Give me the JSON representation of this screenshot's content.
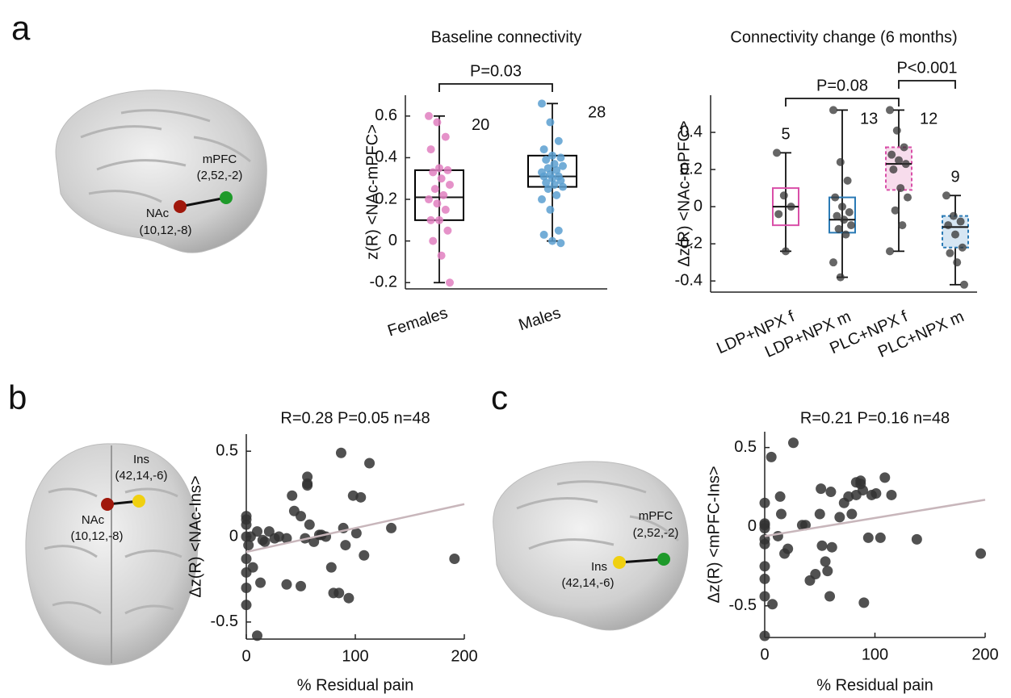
{
  "panel_labels": [
    "a",
    "b",
    "c"
  ],
  "brains": [
    {
      "labels": [
        "mPFC",
        "(2,52,-2)",
        "NAc",
        "(10,12,-8)"
      ]
    },
    {
      "labels": [
        "Ins",
        "(42,14,-6)",
        "NAc",
        "(10,12,-8)"
      ]
    },
    {
      "labels": [
        "mPFC",
        "(2,52,-2)",
        "Ins",
        "(42,14,-6)"
      ]
    }
  ],
  "chart_data": [
    {
      "type": "box",
      "title": "Baseline connectivity",
      "ylabel": "z(R) <NAc-mPFC>",
      "categories": [
        "Females",
        "Males"
      ],
      "ylim": [
        -0.23,
        0.7
      ],
      "yticks": [
        -0.2,
        0,
        0.2,
        0.4,
        0.6
      ],
      "boxes": [
        {
          "min": -0.2,
          "q1": 0.1,
          "median": 0.21,
          "q3": 0.34,
          "max": 0.6,
          "n": 20,
          "color": "#e07fbf",
          "edge": "#000000",
          "fill": "none",
          "dashed": false,
          "points": [
            0.6,
            0.57,
            0.5,
            0.44,
            0.35,
            0.34,
            0.33,
            0.3,
            0.27,
            0.25,
            0.22,
            0.2,
            0.18,
            0.15,
            0.1,
            0.1,
            0.05,
            0.0,
            -0.07,
            -0.2
          ]
        },
        {
          "min": 0,
          "q1": 0.26,
          "median": 0.31,
          "q3": 0.41,
          "max": 0.66,
          "n": 28,
          "color": "#5a9fd0",
          "edge": "#000000",
          "fill": "none",
          "dashed": false,
          "points": [
            0.66,
            0.57,
            0.48,
            0.44,
            0.41,
            0.4,
            0.39,
            0.37,
            0.36,
            0.35,
            0.34,
            0.33,
            0.32,
            0.31,
            0.31,
            0.3,
            0.29,
            0.28,
            0.27,
            0.26,
            0.25,
            0.22,
            0.2,
            0.15,
            0.05,
            0.03,
            0.0,
            -0.01
          ]
        }
      ],
      "brackets": [
        {
          "between": [
            "Females",
            "Males"
          ],
          "label": "P=0.03"
        }
      ]
    },
    {
      "type": "box",
      "title": "Connectivity change (6 months)",
      "ylabel": "Δz(R) <NAc-mPFC>",
      "categories": [
        "LDP+NPX f",
        "LDP+NPX m",
        "PLC+NPX f",
        "PLC+NPX m"
      ],
      "ylim": [
        -0.46,
        0.6
      ],
      "yticks": [
        -0.4,
        -0.2,
        0,
        0.2,
        0.4
      ],
      "boxes": [
        {
          "min": -0.24,
          "q1": -0.1,
          "median": 0,
          "q3": 0.1,
          "max": 0.29,
          "n": 5,
          "color": "#333333",
          "edge": "#d94fa8",
          "fill": "none",
          "dashed": false,
          "points": [
            0.29,
            0.06,
            0,
            -0.04,
            -0.24
          ]
        },
        {
          "min": -0.38,
          "q1": -0.14,
          "median": -0.07,
          "q3": 0.05,
          "max": 0.52,
          "n": 13,
          "color": "#333333",
          "edge": "#2a7ab5",
          "fill": "none",
          "dashed": false,
          "points": [
            0.52,
            0.24,
            0.14,
            0.05,
            0,
            -0.03,
            -0.05,
            -0.07,
            -0.1,
            -0.12,
            -0.15,
            -0.3,
            -0.38
          ]
        },
        {
          "min": -0.24,
          "q1": 0.09,
          "median": 0.23,
          "q3": 0.32,
          "max": 0.52,
          "n": 12,
          "color": "#333333",
          "edge": "#d94fa8",
          "fill": "#f7dcec",
          "dashed": true,
          "points": [
            0.52,
            0.41,
            0.32,
            0.28,
            0.25,
            0.23,
            0.2,
            0.1,
            0.05,
            -0.02,
            -0.1,
            -0.24
          ]
        },
        {
          "min": -0.42,
          "q1": -0.22,
          "median": -0.11,
          "q3": -0.05,
          "max": 0.06,
          "n": 9,
          "color": "#333333",
          "edge": "#2a7ab5",
          "fill": "#d6e6f3",
          "dashed": true,
          "points": [
            0.06,
            -0.05,
            -0.08,
            -0.1,
            -0.15,
            -0.22,
            -0.25,
            -0.3,
            -0.42
          ]
        }
      ],
      "brackets": [
        {
          "between": [
            "LDP+NPX f",
            "PLC+NPX f"
          ],
          "label": "P=0.08"
        },
        {
          "between": [
            "PLC+NPX f",
            "PLC+NPX m"
          ],
          "label": "P<0.001"
        }
      ]
    },
    {
      "type": "scatter",
      "title": "R=0.28 P=0.05 n=48",
      "xlabel": "% Residual pain",
      "ylabel": "Δz(R) <NAc-Ins>",
      "color": "#333333",
      "xlim": [
        0,
        200
      ],
      "xticks": [
        0,
        100,
        200
      ],
      "ylim": [
        -0.6,
        0.6
      ],
      "yticks": [
        -0.5,
        0,
        0.5
      ],
      "x": [
        0,
        0,
        0,
        0,
        0,
        0,
        0,
        0,
        2,
        4,
        6,
        10,
        10,
        13,
        15,
        17,
        21,
        26,
        37,
        37,
        42,
        44,
        50,
        50,
        54,
        56,
        56,
        56,
        58,
        67,
        69,
        73,
        78,
        80,
        85,
        87,
        89,
        91,
        94,
        98,
        101,
        105,
        108,
        113,
        133,
        191,
        30,
        62
      ],
      "y": [
        0.12,
        0.1,
        0.07,
        0,
        -0.13,
        -0.21,
        -0.3,
        -0.4,
        -0.05,
        0,
        -0.18,
        -0.58,
        0.03,
        -0.27,
        -0.02,
        -0.03,
        0.03,
        -0.01,
        -0.01,
        -0.28,
        0.24,
        0.15,
        0.12,
        -0.29,
        -0.01,
        0.35,
        0.31,
        0.3,
        0.07,
        0.01,
        0.01,
        0,
        -0.18,
        -0.33,
        -0.33,
        0.49,
        0.05,
        -0.05,
        -0.36,
        0.24,
        0.02,
        0.23,
        -0.11,
        0.43,
        0.05,
        -0.13,
        0,
        -0.03
      ],
      "fit": {
        "x": [
          0,
          200
        ],
        "y": [
          -0.09,
          0.19
        ],
        "color": "#c8b6bb"
      }
    },
    {
      "type": "scatter",
      "title": "R=0.21 P=0.16 n=48",
      "xlabel": "% Residual pain",
      "ylabel": "Δz(R) <mPFC-Ins>",
      "color": "#333333",
      "xlim": [
        0,
        200
      ],
      "xticks": [
        0,
        100,
        200
      ],
      "ylim": [
        -0.7,
        0.6
      ],
      "yticks": [
        -0.5,
        0,
        0.5
      ],
      "x": [
        0,
        0,
        0,
        0,
        0,
        0,
        0,
        0,
        0,
        0,
        6,
        7,
        12,
        14,
        15,
        18,
        21,
        26,
        34,
        37,
        41,
        46,
        50,
        51,
        52,
        55,
        57,
        59,
        61,
        68,
        72,
        76,
        79,
        83,
        87,
        87,
        89,
        90,
        94,
        97,
        101,
        105,
        109,
        115,
        138,
        196,
        60,
        83
      ],
      "y": [
        0.01,
        -0.01,
        0.15,
        -0.11,
        -0.25,
        -0.33,
        -0.44,
        -0.69,
        0.02,
        -0.08,
        0.44,
        -0.49,
        -0.06,
        0.19,
        0.08,
        -0.17,
        -0.14,
        0.53,
        0.01,
        0.01,
        -0.34,
        -0.3,
        0.08,
        0.24,
        -0.12,
        -0.22,
        -0.28,
        -0.44,
        -0.13,
        0.06,
        0.15,
        0.19,
        0.08,
        0.2,
        0.27,
        0.29,
        0.23,
        -0.48,
        -0.07,
        0.2,
        0.21,
        -0.07,
        0.31,
        0.2,
        -0.08,
        -0.17,
        0.22,
        0.28
      ],
      "fit": {
        "x": [
          0,
          200
        ],
        "y": [
          -0.06,
          0.17
        ],
        "color": "#c8b6bb"
      }
    }
  ]
}
